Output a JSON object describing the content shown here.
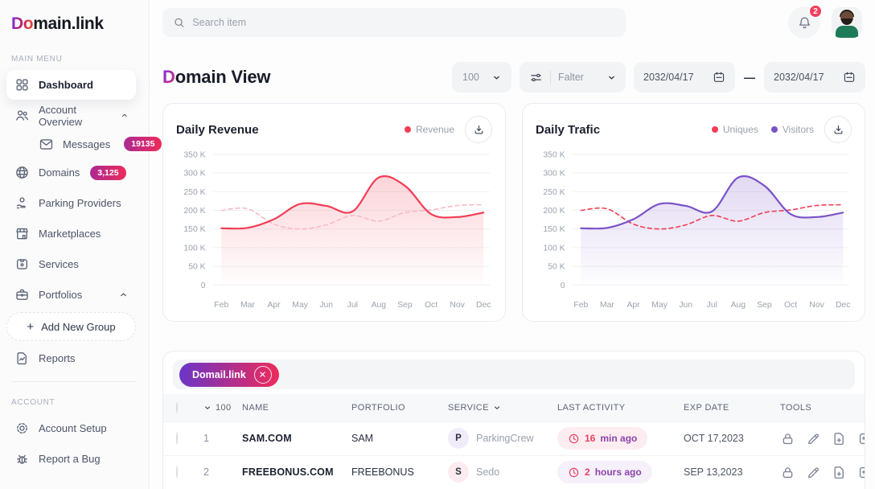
{
  "sidebar": {
    "logo": {
      "gradient_text": "Do",
      "rest_text": "main.link"
    },
    "main_menu_label": "MAIN MENU",
    "account_label": "ACCOUNT",
    "dashboard": "Dashboard",
    "account_overview": "Account Overview",
    "messages": "Messages",
    "messages_badge": "19135",
    "domains": "Domains",
    "domains_badge": "3,125",
    "parking_providers": "Parking Providers",
    "marketplaces": "Marketplaces",
    "services": "Services",
    "portfolios": "Portfolios",
    "add_new_group_plus": "+",
    "add_new_group": "Add New Group",
    "reports": "Reports",
    "account_setup": "Account Setup",
    "report_a_bug": "Report a Bug"
  },
  "topbar": {
    "search_placeholder": "Search item",
    "notification_count": "2"
  },
  "page_header": {
    "title_accent": "D",
    "title_rest": "omain View",
    "page_size": "100",
    "filter_label": "Falter",
    "date_from": "2032/04/17",
    "date_range_separator": "—",
    "date_to": "2032/04/17"
  },
  "chart_data": [
    {
      "type": "line",
      "title": "Daily Revenue",
      "categories": [
        "Feb",
        "Mar",
        "Apr",
        "May",
        "Jun",
        "Jul",
        "Aug",
        "Sep",
        "Oct",
        "Nov",
        "Dec"
      ],
      "ylim": [
        0,
        350000
      ],
      "unit": "K",
      "grid": true,
      "legend_position": "top-right",
      "ytick_labels": [
        "0",
        "50 K",
        "100 K",
        "150 K",
        "200 K",
        "250 K",
        "300 K",
        "350 K"
      ],
      "series": [
        {
          "name": "Revenue",
          "color": "#f23d54",
          "style": "solid",
          "area_fill": true,
          "values_k": [
            152,
            153,
            176,
            217,
            212,
            197,
            288,
            266,
            190,
            182,
            194
          ]
        },
        {
          "name": "",
          "color": "#f8bac5",
          "style": "dashed",
          "area_fill": false,
          "values_k": [
            200,
            204,
            163,
            150,
            161,
            186,
            171,
            194,
            201,
            213,
            215
          ]
        }
      ],
      "legend": [
        {
          "label": "Revenue",
          "color": "#f23d54"
        }
      ]
    },
    {
      "type": "line",
      "title": "Daily Trafic",
      "categories": [
        "Feb",
        "Mar",
        "Apr",
        "May",
        "Jun",
        "Jul",
        "Aug",
        "Sep",
        "Oct",
        "Nov",
        "Dec"
      ],
      "ylim": [
        0,
        350000
      ],
      "unit": "K",
      "grid": true,
      "legend_position": "top-right",
      "ytick_labels": [
        "0",
        "50 K",
        "100 K",
        "150 K",
        "200 K",
        "250 K",
        "300 K",
        "350 K"
      ],
      "series": [
        {
          "name": "Visitors",
          "color": "#7a52c7",
          "style": "solid",
          "area_fill": true,
          "values_k": [
            152,
            153,
            176,
            217,
            212,
            197,
            288,
            266,
            190,
            182,
            194
          ]
        },
        {
          "name": "Uniques",
          "color": "#f23d54",
          "style": "dashed",
          "area_fill": false,
          "values_k": [
            200,
            204,
            163,
            150,
            161,
            186,
            171,
            194,
            201,
            213,
            215
          ]
        }
      ],
      "legend": [
        {
          "label": "Uniques",
          "color": "#f23d54"
        },
        {
          "label": "Visitors",
          "color": "#7a52c7"
        }
      ]
    }
  ],
  "table": {
    "filter_chip": "Domail.link",
    "header": {
      "count": "100",
      "name": "NAME",
      "portfolio": "PORTFOLIO",
      "service": "SERVICE",
      "last_activity": "LAST ACTIVITY",
      "exp_date": "EXP DATE",
      "tools": "TOOLS"
    },
    "rows": [
      {
        "num": "1",
        "name": "SAM.COM",
        "portfolio": "SAM",
        "service_initial": "P",
        "service_name": "ParkingCrew",
        "activity_value": "16",
        "activity_unit": "min ago",
        "exp_date": "OCT 17,2023"
      },
      {
        "num": "2",
        "name": "FREEBONUS.COM",
        "portfolio": "FREEBONUS",
        "service_initial": "S",
        "service_name": "Sedo",
        "activity_value": "2",
        "activity_unit": "hours ago",
        "exp_date": "SEP 13,2023"
      }
    ]
  },
  "colors": {
    "accent_red": "#f23d54",
    "accent_purple": "#7a52c7",
    "badge_gradient": [
      "#aa2b93",
      "#ee2b59"
    ],
    "chip_gradient": [
      "#6a35c8",
      "#ee2b59"
    ],
    "notification_red": "#f43f5e"
  }
}
